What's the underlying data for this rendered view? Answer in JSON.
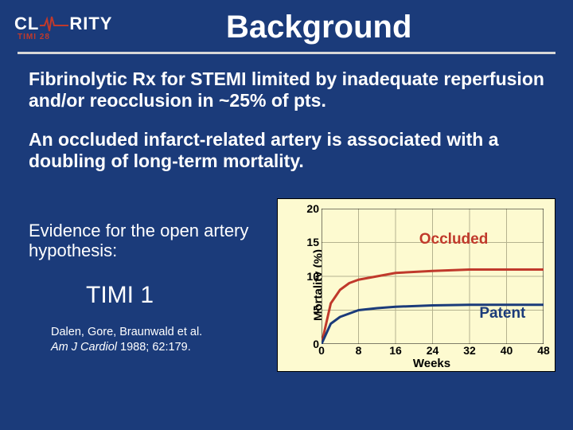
{
  "logo": {
    "brand_left": "CL",
    "brand_right": "RITY",
    "sub": "TIMI 28",
    "ecg_color": "#c0392b"
  },
  "title": "Background",
  "hr_color": "#d7d7d7",
  "paragraphs": [
    "Fibrinolytic Rx for STEMI limited by inadequate reperfusion and/or reocclusion in ~25% of pts.",
    "An occluded infarct-related artery is associated with a doubling of long-term mortality."
  ],
  "hypothesis": "Evidence for the open artery hypothesis:",
  "timi_label": "TIMI 1",
  "citation_authors": "Dalen, Gore, Braunwald et al.",
  "citation_journal": "Am J Cardiol",
  "citation_ref": " 1988; 62:179.",
  "chart": {
    "type": "line",
    "background_color": "#fdfad0",
    "border_color": "#000000",
    "ylabel": "Mortality (%)",
    "xlabel": "Weeks",
    "xlim": [
      0,
      48
    ],
    "ylim": [
      0,
      20
    ],
    "xticks": [
      0,
      8,
      16,
      24,
      32,
      40,
      48
    ],
    "yticks": [
      0,
      5,
      10,
      15,
      20
    ],
    "tick_fontsize": 14,
    "label_fontsize": 15,
    "grid_color": "#b5b38f",
    "line_width": 3,
    "series": [
      {
        "name": "Occluded",
        "color": "#c0392b",
        "label_color": "#c0392b",
        "label_x": 28,
        "label_y": 15.5,
        "x": [
          0,
          2,
          4,
          6,
          8,
          12,
          16,
          24,
          32,
          40,
          48
        ],
        "y": [
          0,
          6,
          8,
          9,
          9.5,
          10,
          10.5,
          10.8,
          11,
          11,
          11
        ]
      },
      {
        "name": "Patent",
        "color": "#1b3b7a",
        "label_color": "#1b3b7a",
        "label_x": 41,
        "label_y": 4.5,
        "x": [
          0,
          2,
          4,
          6,
          8,
          12,
          16,
          24,
          32,
          40,
          48
        ],
        "y": [
          0,
          3,
          4,
          4.5,
          5,
          5.3,
          5.5,
          5.7,
          5.8,
          5.8,
          5.8
        ]
      }
    ]
  },
  "colors": {
    "slide_bg": "#1b3b7a",
    "text_light": "#ffffff"
  }
}
